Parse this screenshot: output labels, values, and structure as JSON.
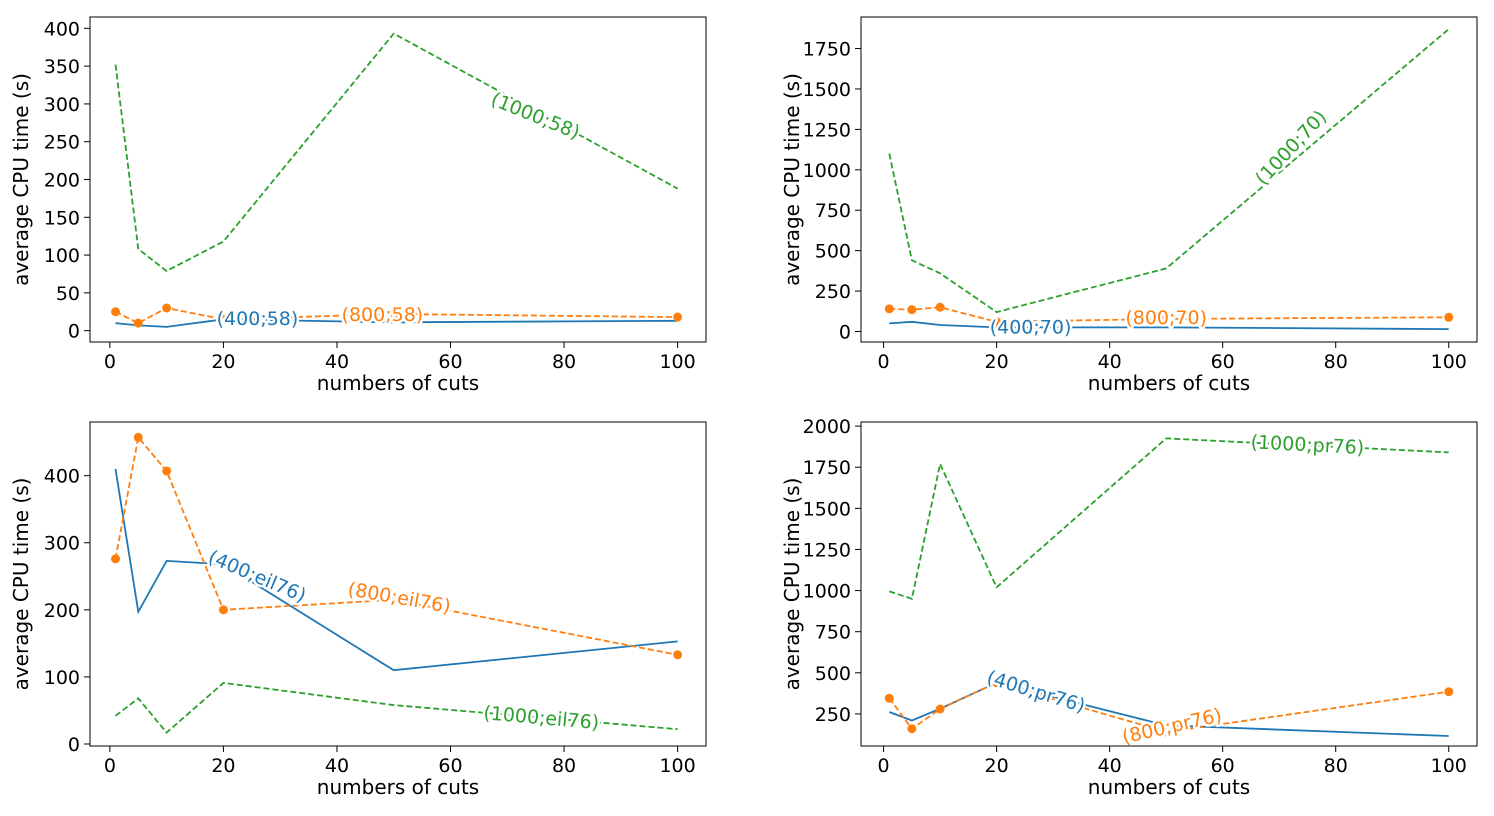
{
  "colors": {
    "series_400": "#1f77b4",
    "series_800": "#ff7f0e",
    "series_1000": "#2ca02c"
  },
  "chart_data": [
    {
      "type": "line",
      "xlabel": "numbers of cuts",
      "ylabel": "average CPU time (s)",
      "xlim": [
        -3.5,
        105
      ],
      "ylim": [
        -15,
        415
      ],
      "xticks": [
        0,
        20,
        40,
        60,
        80,
        100
      ],
      "yticks": [
        0,
        50,
        100,
        150,
        200,
        250,
        300,
        350,
        400
      ],
      "x": [
        1,
        5,
        10,
        20,
        50,
        100
      ],
      "series": [
        {
          "name": "(400;58)",
          "color_key": "series_400",
          "dash": false,
          "markers": false,
          "values": [
            10,
            7,
            5,
            15,
            11,
            13
          ],
          "label_pos": [
            26,
            17
          ],
          "label_rot": 0
        },
        {
          "name": "(800;58)",
          "color_key": "series_800",
          "dash": true,
          "markers": true,
          "values": [
            25,
            10,
            30,
            15,
            22,
            18
          ],
          "label_pos": [
            48,
            22
          ],
          "label_rot": 0
        },
        {
          "name": "(1000;58)",
          "color_key": "series_1000",
          "dash": true,
          "markers": false,
          "values": [
            352,
            108,
            79,
            118,
            393,
            188
          ],
          "label_pos": [
            75,
            285
          ],
          "label_rot": 22
        }
      ]
    },
    {
      "type": "line",
      "xlabel": "numbers of cuts",
      "ylabel": "average CPU time (s)",
      "xlim": [
        -4,
        105
      ],
      "ylim": [
        -65,
        1945
      ],
      "xticks": [
        0,
        20,
        40,
        60,
        80,
        100
      ],
      "yticks": [
        0,
        250,
        500,
        750,
        1000,
        1250,
        1500,
        1750
      ],
      "x": [
        1,
        5,
        10,
        20,
        50,
        100
      ],
      "series": [
        {
          "name": "(400;70)",
          "color_key": "series_400",
          "dash": false,
          "markers": false,
          "values": [
            50,
            60,
            40,
            25,
            25,
            15
          ],
          "label_pos": [
            26,
            30
          ],
          "label_rot": 0
        },
        {
          "name": "(800;70)",
          "color_key": "series_800",
          "dash": true,
          "markers": true,
          "values": [
            140,
            135,
            150,
            60,
            78,
            88
          ],
          "label_pos": [
            50,
            90
          ],
          "label_rot": 0
        },
        {
          "name": "(1000;70)",
          "color_key": "series_1000",
          "dash": true,
          "markers": false,
          "values": [
            1100,
            440,
            360,
            120,
            390,
            1870
          ],
          "label_pos": [
            72,
            1140
          ],
          "label_rot": -47
        }
      ]
    },
    {
      "type": "line",
      "xlabel": "numbers of cuts",
      "ylabel": "average CPU time (s)",
      "xlim": [
        -3.5,
        105
      ],
      "ylim": [
        -3,
        480
      ],
      "xticks": [
        0,
        20,
        40,
        60,
        80,
        100
      ],
      "yticks": [
        0,
        100,
        200,
        300,
        400
      ],
      "x": [
        1,
        5,
        10,
        20,
        50,
        100
      ],
      "series": [
        {
          "name": "(400;eil76)",
          "color_key": "series_400",
          "dash": false,
          "markers": false,
          "values": [
            410,
            197,
            273,
            268,
            110,
            153
          ],
          "label_pos": [
            26,
            251
          ],
          "label_rot": 23
        },
        {
          "name": "(800;eil76)",
          "color_key": "series_800",
          "dash": true,
          "markers": true,
          "values": [
            276,
            457,
            407,
            200,
            215,
            133
          ],
          "label_pos": [
            51,
            219
          ],
          "label_rot": 10
        },
        {
          "name": "(1000;eil76)",
          "color_key": "series_1000",
          "dash": true,
          "markers": false,
          "values": [
            42,
            68,
            17,
            91,
            58,
            22
          ],
          "label_pos": [
            76,
            40
          ],
          "label_rot": 5
        }
      ]
    },
    {
      "type": "line",
      "xlabel": "numbers of cuts",
      "ylabel": "average CPU time (s)",
      "xlim": [
        -4,
        105
      ],
      "ylim": [
        55,
        2025
      ],
      "xticks": [
        0,
        20,
        40,
        60,
        80,
        100
      ],
      "yticks": [
        250,
        500,
        750,
        1000,
        1250,
        1500,
        1750,
        2000
      ],
      "x": [
        1,
        5,
        10,
        20,
        50,
        100
      ],
      "series": [
        {
          "name": "(400;pr76)",
          "color_key": "series_400",
          "dash": false,
          "markers": false,
          "values": [
            262,
            210,
            282,
            440,
            180,
            116
          ],
          "label_pos": [
            27,
            390
          ],
          "label_rot": 17
        },
        {
          "name": "(800;pr76)",
          "color_key": "series_800",
          "dash": true,
          "markers": true,
          "values": [
            345,
            160,
            280,
            440,
            140,
            385
          ],
          "label_pos": [
            51,
            180
          ],
          "label_rot": -13
        },
        {
          "name": "(1000;pr76)",
          "color_key": "series_1000",
          "dash": true,
          "markers": false,
          "values": [
            995,
            950,
            1770,
            1020,
            1925,
            1840
          ],
          "label_pos": [
            75,
            1890
          ],
          "label_rot": 3
        }
      ]
    }
  ]
}
